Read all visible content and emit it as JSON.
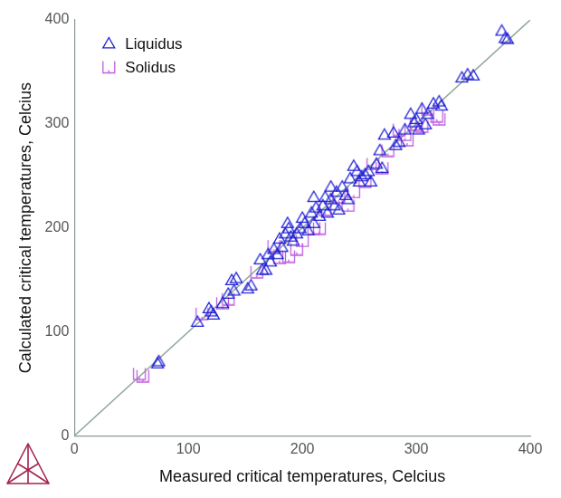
{
  "chart_data": {
    "type": "scatter",
    "x_label": "Measured critical temperatures, Celcius",
    "y_label": "Calculated critical temperatures, Celcius",
    "xlim": [
      0,
      400
    ],
    "ylim": [
      0,
      400
    ],
    "xticks": [
      0,
      100,
      200,
      300,
      400
    ],
    "yticks": [
      0,
      100,
      200,
      300,
      400
    ],
    "grid": false,
    "legend": "upper left",
    "series": [
      {
        "name": "Liquidus",
        "color": "#1f1fd6",
        "marker": "triangle",
        "x": [
          74,
          73,
          108,
          118,
          120,
          122,
          135,
          138,
          142,
          140,
          152,
          163,
          165,
          168,
          170,
          172,
          175,
          178,
          180,
          182,
          185,
          188,
          190,
          192,
          195,
          198,
          200,
          202,
          205,
          208,
          210,
          212,
          215,
          218,
          220,
          222,
          225,
          228,
          230,
          232,
          235,
          238,
          240,
          242,
          245,
          248,
          250,
          252,
          255,
          258,
          265,
          268,
          270,
          272,
          280,
          282,
          285,
          290,
          295,
          298,
          300,
          302,
          305,
          308,
          310,
          315,
          320,
          322,
          340,
          345,
          350,
          375,
          378,
          380,
          155,
          130,
          187,
          210,
          225,
          260
        ],
        "values": [
          72,
          70,
          110,
          123,
          120,
          117,
          137,
          150,
          152,
          140,
          142,
          170,
          160,
          160,
          175,
          168,
          180,
          175,
          190,
          182,
          195,
          200,
          192,
          188,
          195,
          200,
          210,
          205,
          198,
          215,
          205,
          220,
          212,
          222,
          230,
          215,
          228,
          222,
          235,
          218,
          240,
          232,
          228,
          248,
          260,
          255,
          245,
          250,
          252,
          255,
          262,
          275,
          258,
          290,
          292,
          280,
          283,
          295,
          310,
          302,
          305,
          295,
          315,
          300,
          310,
          320,
          322,
          318,
          345,
          348,
          347,
          390,
          383,
          382,
          145,
          128,
          205,
          230,
          240,
          245
        ]
      },
      {
        "name": "Solidus",
        "color": "#c05ee0",
        "marker": "cup",
        "x": [
          57,
          60,
          112,
          130,
          135,
          160,
          175,
          180,
          188,
          195,
          200,
          210,
          215,
          220,
          232,
          240,
          245,
          255,
          270,
          275,
          285,
          290,
          292,
          300,
          305,
          310,
          318,
          320,
          262
        ],
        "values": [
          60,
          58,
          118,
          128,
          132,
          158,
          183,
          172,
          173,
          180,
          188,
          200,
          200,
          218,
          230,
          222,
          235,
          245,
          258,
          275,
          295,
          290,
          285,
          300,
          298,
          315,
          308,
          305,
          262
        ]
      }
    ],
    "reference_line": {
      "x": [
        0,
        400
      ],
      "values": [
        0,
        400
      ],
      "color": "#8fa89a",
      "line_style": "solid"
    }
  }
}
